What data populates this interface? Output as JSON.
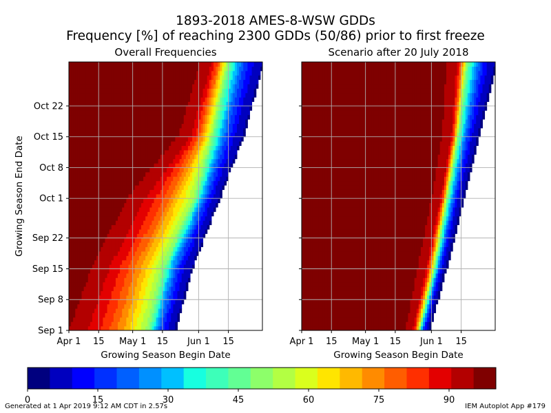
{
  "title_line1": "1893-2018 AMES-8-WSW GDDs",
  "title_line2": "Frequency [%] of reaching 2300 GDDs (50/86) prior to first freeze",
  "footer_left": "Generated at 1 Apr 2019 9:12 AM CDT in 2.57s",
  "footer_right": "IEM Autoplot App #179",
  "colorbar": {
    "colors": [
      "#00007f",
      "#0000bf",
      "#0000ff",
      "#0030ff",
      "#0060ff",
      "#0090ff",
      "#00c0ff",
      "#17ffe0",
      "#3dffb9",
      "#62ff94",
      "#8dff6a",
      "#b3ff43",
      "#daff1d",
      "#ffe500",
      "#ffb900",
      "#ff8b00",
      "#ff5d00",
      "#ff2f00",
      "#e30000",
      "#b30000",
      "#7f0000"
    ],
    "ticks": [
      0,
      15,
      30,
      45,
      60,
      75,
      90
    ],
    "min": 0,
    "max": 100
  },
  "chart_data": [
    {
      "type": "heatmap",
      "title": "Overall Frequencies",
      "xlabel": "Growing Season Begin Date",
      "ylabel": "Growing Season End Date",
      "x_ticks": [
        "Apr 1",
        "15",
        "May 1",
        "15",
        "Jun 1",
        "15"
      ],
      "y_ticks": [
        "Sep 1",
        "Sep 8",
        "Sep 15",
        "Sep 22",
        "Oct 1",
        "Oct 8",
        "Oct 15",
        "Oct 22"
      ],
      "x_range": [
        "Apr 1",
        "Jun 30"
      ],
      "y_range": [
        "Sep 1",
        "Oct 31"
      ],
      "grid": true,
      "boundary_points": [
        {
          "end": "Sep 1",
          "begin_95": "Apr 1",
          "begin_50": "May 8",
          "begin_5": "May 20"
        },
        {
          "end": "Sep 15",
          "begin_95": "Apr 12",
          "begin_50": "May 15",
          "begin_5": "May 28"
        },
        {
          "end": "Oct 1",
          "begin_95": "Apr 30",
          "begin_50": "May 30",
          "begin_5": "Jun 10"
        },
        {
          "end": "Oct 15",
          "begin_95": "May 25",
          "begin_50": "Jun 7",
          "begin_5": "Jun 21"
        },
        {
          "end": "Oct 31",
          "begin_95": "Jun 4",
          "begin_50": "Jun 14",
          "begin_5": "Jun 30"
        }
      ]
    },
    {
      "type": "heatmap",
      "title": "Scenario after 20 July 2018",
      "xlabel": "Growing Season Begin Date",
      "ylabel": "",
      "x_ticks": [
        "Apr 1",
        "15",
        "May 1",
        "15",
        "Jun 1",
        "15"
      ],
      "y_ticks": [
        "Sep 1",
        "Sep 8",
        "Sep 15",
        "Sep 22",
        "Oct 1",
        "Oct 8",
        "Oct 15",
        "Oct 22"
      ],
      "x_range": [
        "Apr 1",
        "Jun 30"
      ],
      "y_range": [
        "Sep 1",
        "Oct 31"
      ],
      "grid": true,
      "boundary_points": [
        {
          "end": "Sep 1",
          "begin_95": "May 22",
          "begin_50": "May 26",
          "begin_5": "May 30"
        },
        {
          "end": "Sep 15",
          "begin_95": "May 28",
          "begin_50": "Jun 2",
          "begin_5": "Jun 7"
        },
        {
          "end": "Oct 1",
          "begin_95": "Jun 4",
          "begin_50": "Jun 8",
          "begin_5": "Jun 15"
        },
        {
          "end": "Oct 15",
          "begin_95": "Jun 9",
          "begin_50": "Jun 13",
          "begin_5": "Jun 22"
        },
        {
          "end": "Oct 31",
          "begin_95": "Jun 11",
          "begin_50": "Jun 17",
          "begin_5": "Jun 30"
        }
      ]
    }
  ]
}
